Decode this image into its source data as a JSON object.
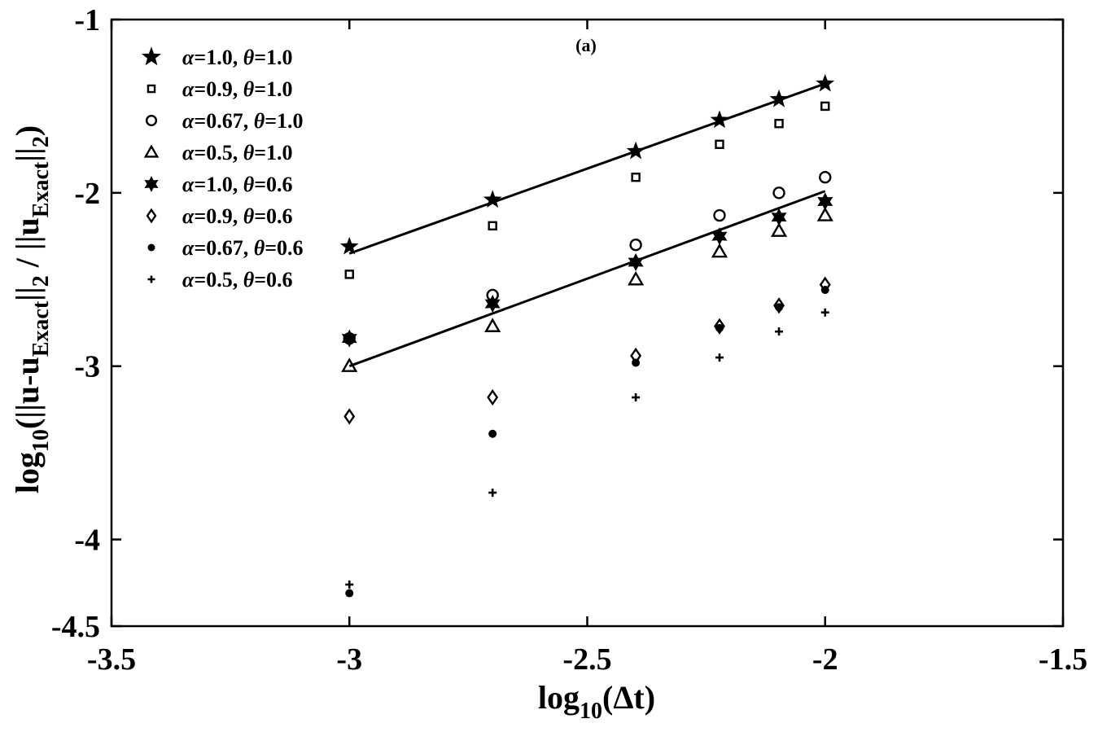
{
  "chart_data": {
    "type": "scatter",
    "panel_label": "(a)",
    "xlabel": {
      "prefix": "log",
      "sub": "10",
      "suffix": "(Δt)"
    },
    "ylabel": {
      "p1": "log",
      "s1": "10",
      "p2": "(||u-u",
      "s2": "Exact",
      "p3": "||",
      "s3": "2",
      "p4": " / ||u",
      "s4": "Exact",
      "p5": "||",
      "s5": "2",
      "p6": ")"
    },
    "xlim": [
      -3.5,
      -1.5
    ],
    "ylim": [
      -4.5,
      -1
    ],
    "xticks": [
      {
        "value": -3.5,
        "label": "-3.5"
      },
      {
        "value": -3,
        "label": "-3"
      },
      {
        "value": -2.5,
        "label": "-2.5"
      },
      {
        "value": -2,
        "label": "-2"
      },
      {
        "value": -1.5,
        "label": "-1.5"
      }
    ],
    "yticks": [
      {
        "value": -1,
        "label": "-1"
      },
      {
        "value": -2,
        "label": "-2"
      },
      {
        "value": -3,
        "label": "-3"
      },
      {
        "value": -4,
        "label": "-4"
      },
      {
        "value": -4.5,
        "label": "-4.5"
      }
    ],
    "x": [
      -3.0,
      -2.699,
      -2.398,
      -2.222,
      -2.097,
      -2.0
    ],
    "series": [
      {
        "alpha": "1.0",
        "theta": "1.0",
        "marker": "star5",
        "values": [
          -2.31,
          -2.04,
          -1.76,
          -1.58,
          -1.46,
          -1.37
        ]
      },
      {
        "alpha": "0.9",
        "theta": "1.0",
        "marker": "square",
        "values": [
          -2.47,
          -2.19,
          -1.91,
          -1.72,
          -1.6,
          -1.5
        ]
      },
      {
        "alpha": "0.67",
        "theta": "1.0",
        "marker": "circle",
        "values": [
          -2.84,
          -2.59,
          -2.3,
          -2.13,
          -2.0,
          -1.91
        ]
      },
      {
        "alpha": "0.5",
        "theta": "1.0",
        "marker": "triangle",
        "values": [
          -3.0,
          -2.77,
          -2.5,
          -2.34,
          -2.22,
          -2.13
        ]
      },
      {
        "alpha": "1.0",
        "theta": "0.6",
        "marker": "star6",
        "values": [
          -2.84,
          -2.64,
          -2.4,
          -2.25,
          -2.14,
          -2.05
        ]
      },
      {
        "alpha": "0.9",
        "theta": "0.6",
        "marker": "diamond",
        "values": [
          -3.29,
          -3.18,
          -2.94,
          -2.77,
          -2.65,
          -2.53
        ]
      },
      {
        "alpha": "0.67",
        "theta": "0.6",
        "marker": "dot",
        "values": [
          -4.31,
          -3.39,
          -2.98,
          -2.78,
          -2.66,
          -2.56
        ]
      },
      {
        "alpha": "0.5",
        "theta": "0.6",
        "marker": "plus",
        "values": [
          -4.26,
          -3.73,
          -3.18,
          -2.95,
          -2.8,
          -2.69
        ]
      }
    ],
    "fit_lines": [
      {
        "x": [
          -3.0,
          -2.0
        ],
        "y": [
          -2.35,
          -1.37
        ]
      },
      {
        "x": [
          -3.0,
          -2.0
        ],
        "y": [
          -3.0,
          -1.99
        ]
      }
    ],
    "legend": {
      "position": "top-left",
      "entries": [
        {
          "a": "α",
          "av": "=1.0, ",
          "t": "θ",
          "tv": "=1.0"
        },
        {
          "a": "α",
          "av": "=0.9, ",
          "t": "θ",
          "tv": "=1.0"
        },
        {
          "a": "α",
          "av": "=0.67, ",
          "t": "θ",
          "tv": "=1.0"
        },
        {
          "a": "α",
          "av": "=0.5, ",
          "t": "θ",
          "tv": "=1.0"
        },
        {
          "a": "α",
          "av": "=1.0, ",
          "t": "θ",
          "tv": "=0.6"
        },
        {
          "a": "α",
          "av": "=0.9, ",
          "t": "θ",
          "tv": "=0.6"
        },
        {
          "a": "α",
          "av": "=0.67, ",
          "t": "θ",
          "tv": "=0.6"
        },
        {
          "a": "α",
          "av": "=0.5, ",
          "t": "θ",
          "tv": "=0.6"
        }
      ]
    },
    "colors": {
      "ink": "#000000",
      "background": "#ffffff"
    }
  }
}
